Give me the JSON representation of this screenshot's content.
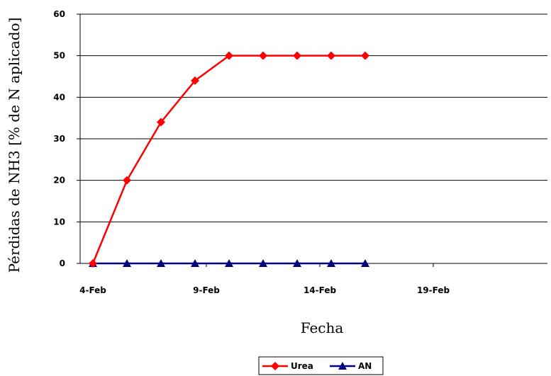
{
  "chart_data": {
    "type": "line",
    "xlabel": "Fecha",
    "ylabel": "Pérdidas de NH3 [% de N aplicado]",
    "ylim": [
      0,
      60
    ],
    "yticks": [
      "0",
      "10",
      "20",
      "30",
      "40",
      "50",
      "60"
    ],
    "xticks": [
      "4-Feb",
      "9-Feb",
      "14-Feb",
      "19-Feb"
    ],
    "xlim_days": [
      4,
      20
    ],
    "grid": "horizontal",
    "legend_position": "bottom-center",
    "series": [
      {
        "name": "Urea",
        "color": "#ff0000",
        "marker": "diamond",
        "x": [
          4,
          5.5,
          7,
          8.5,
          10,
          11.5,
          13,
          14.5,
          16
        ],
        "values": [
          0,
          20,
          34,
          44,
          50,
          50,
          50,
          50,
          50
        ]
      },
      {
        "name": "AN",
        "color": "#000080",
        "marker": "triangle",
        "x": [
          4,
          5.5,
          7,
          8.5,
          10,
          11.5,
          13,
          14.5,
          16
        ],
        "values": [
          0,
          0,
          0,
          0,
          0,
          0,
          0,
          0,
          0
        ]
      }
    ]
  }
}
